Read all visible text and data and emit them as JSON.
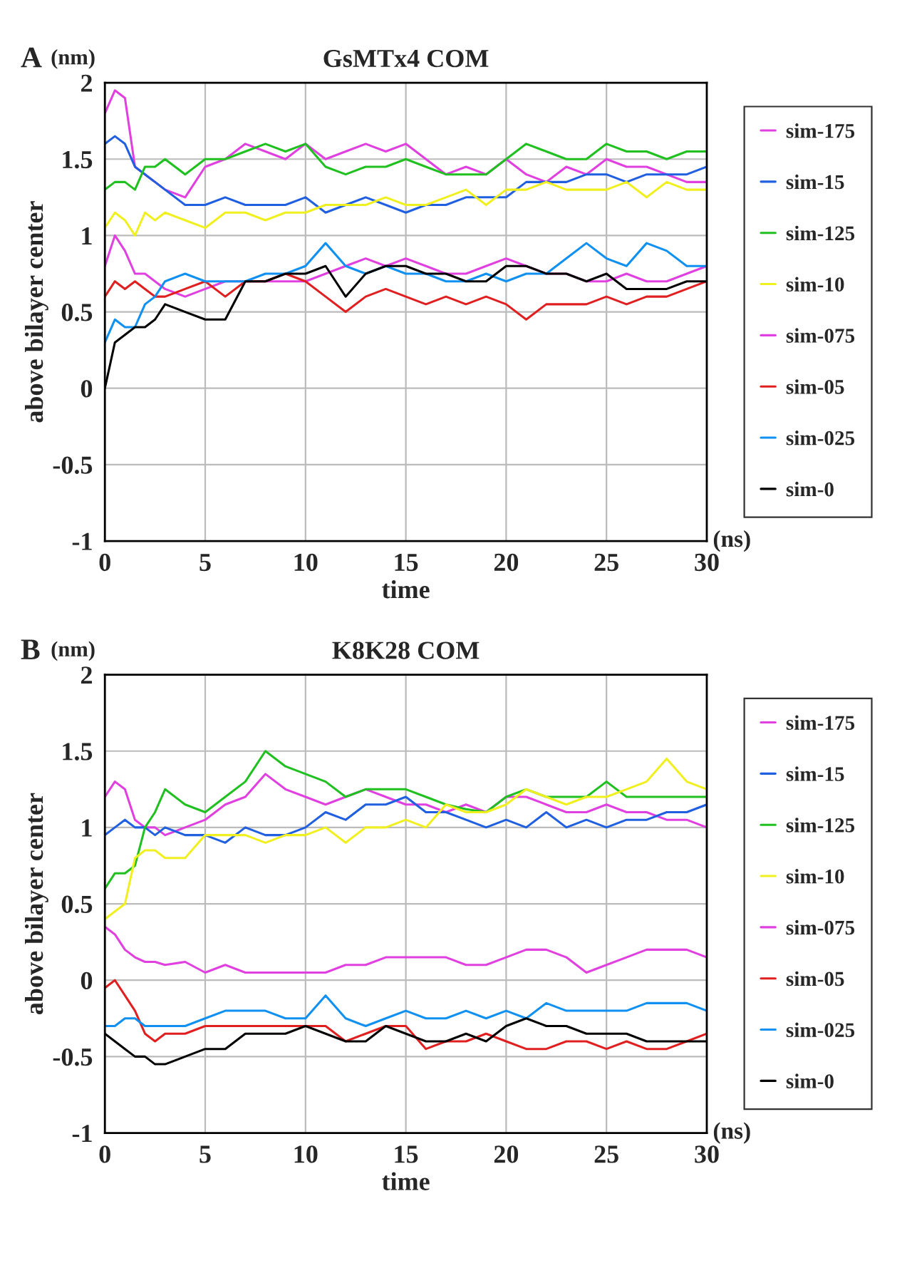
{
  "chart_data": [
    {
      "type": "line",
      "title": "GsMTx4 COM",
      "xlabel": "time",
      "ylabel": "above bilayer center",
      "annotations": [
        "A",
        "(nm)",
        "(ns)"
      ],
      "x": [
        0,
        0.5,
        1,
        1.5,
        2,
        2.5,
        3,
        4,
        5,
        6,
        7,
        8,
        9,
        10,
        11,
        12,
        13,
        14,
        15,
        16,
        17,
        18,
        19,
        20,
        21,
        22,
        23,
        24,
        25,
        26,
        27,
        28,
        29,
        30
      ],
      "xlim": [
        0,
        30
      ],
      "xticks": [
        0,
        5,
        10,
        15,
        20,
        25,
        30
      ],
      "ylim": [
        -1,
        2
      ],
      "yticks": [
        -1,
        -0.5,
        0,
        0.5,
        1,
        1.5,
        2
      ],
      "grid": true,
      "legend": "right",
      "line_style": "solid",
      "series": [
        {
          "name": "sim-175",
          "color": "#e040e0",
          "values": [
            1.8,
            1.95,
            1.9,
            1.45,
            1.4,
            1.35,
            1.3,
            1.25,
            1.45,
            1.5,
            1.6,
            1.55,
            1.5,
            1.6,
            1.5,
            1.55,
            1.6,
            1.55,
            1.6,
            1.5,
            1.4,
            1.45,
            1.4,
            1.5,
            1.4,
            1.35,
            1.45,
            1.4,
            1.5,
            1.45,
            1.45,
            1.4,
            1.35,
            1.35
          ]
        },
        {
          "name": "sim-15",
          "color": "#2060e0",
          "values": [
            1.6,
            1.65,
            1.6,
            1.45,
            1.4,
            1.35,
            1.3,
            1.2,
            1.2,
            1.25,
            1.2,
            1.2,
            1.2,
            1.25,
            1.15,
            1.2,
            1.25,
            1.2,
            1.15,
            1.2,
            1.2,
            1.25,
            1.25,
            1.25,
            1.35,
            1.35,
            1.35,
            1.4,
            1.4,
            1.35,
            1.4,
            1.4,
            1.4,
            1.45
          ]
        },
        {
          "name": "sim-125",
          "color": "#20c020",
          "values": [
            1.3,
            1.35,
            1.35,
            1.3,
            1.45,
            1.45,
            1.5,
            1.4,
            1.5,
            1.5,
            1.55,
            1.6,
            1.55,
            1.6,
            1.45,
            1.4,
            1.45,
            1.45,
            1.5,
            1.45,
            1.4,
            1.4,
            1.4,
            1.5,
            1.6,
            1.55,
            1.5,
            1.5,
            1.6,
            1.55,
            1.55,
            1.5,
            1.55,
            1.55
          ]
        },
        {
          "name": "sim-10",
          "color": "#f0f020",
          "values": [
            1.05,
            1.15,
            1.1,
            1.0,
            1.15,
            1.1,
            1.15,
            1.1,
            1.05,
            1.15,
            1.15,
            1.1,
            1.15,
            1.15,
            1.2,
            1.2,
            1.2,
            1.25,
            1.2,
            1.2,
            1.25,
            1.3,
            1.2,
            1.3,
            1.3,
            1.35,
            1.3,
            1.3,
            1.3,
            1.35,
            1.25,
            1.35,
            1.3,
            1.3
          ]
        },
        {
          "name": "sim-075",
          "color": "#e040e0",
          "values": [
            0.8,
            1.0,
            0.9,
            0.75,
            0.75,
            0.7,
            0.65,
            0.6,
            0.65,
            0.7,
            0.7,
            0.7,
            0.7,
            0.7,
            0.75,
            0.8,
            0.85,
            0.8,
            0.85,
            0.8,
            0.75,
            0.75,
            0.8,
            0.85,
            0.8,
            0.75,
            0.75,
            0.7,
            0.7,
            0.75,
            0.7,
            0.7,
            0.75,
            0.8
          ]
        },
        {
          "name": "sim-05",
          "color": "#e02020",
          "values": [
            0.6,
            0.7,
            0.65,
            0.7,
            0.65,
            0.6,
            0.6,
            0.65,
            0.7,
            0.6,
            0.7,
            0.7,
            0.75,
            0.7,
            0.6,
            0.5,
            0.6,
            0.65,
            0.6,
            0.55,
            0.6,
            0.55,
            0.6,
            0.55,
            0.45,
            0.55,
            0.55,
            0.55,
            0.6,
            0.55,
            0.6,
            0.6,
            0.65,
            0.7
          ]
        },
        {
          "name": "sim-025",
          "color": "#1090f0",
          "values": [
            0.3,
            0.45,
            0.4,
            0.4,
            0.55,
            0.6,
            0.7,
            0.75,
            0.7,
            0.7,
            0.7,
            0.75,
            0.75,
            0.8,
            0.95,
            0.8,
            0.75,
            0.8,
            0.75,
            0.75,
            0.7,
            0.7,
            0.75,
            0.7,
            0.75,
            0.75,
            0.85,
            0.95,
            0.85,
            0.8,
            0.95,
            0.9,
            0.8,
            0.8
          ]
        },
        {
          "name": "sim-0",
          "color": "#000000",
          "values": [
            0.0,
            0.3,
            0.35,
            0.4,
            0.4,
            0.45,
            0.55,
            0.5,
            0.45,
            0.45,
            0.7,
            0.7,
            0.75,
            0.75,
            0.8,
            0.6,
            0.75,
            0.8,
            0.8,
            0.75,
            0.75,
            0.7,
            0.7,
            0.8,
            0.8,
            0.75,
            0.75,
            0.7,
            0.75,
            0.65,
            0.65,
            0.65,
            0.7,
            0.7
          ]
        }
      ]
    },
    {
      "type": "line",
      "title": "K8K28 COM",
      "xlabel": "time",
      "ylabel": "above bilayer center",
      "annotations": [
        "B",
        "(nm)",
        "(ns)"
      ],
      "x": [
        0,
        0.5,
        1,
        1.5,
        2,
        2.5,
        3,
        4,
        5,
        6,
        7,
        8,
        9,
        10,
        11,
        12,
        13,
        14,
        15,
        16,
        17,
        18,
        19,
        20,
        21,
        22,
        23,
        24,
        25,
        26,
        27,
        28,
        29,
        30
      ],
      "xlim": [
        0,
        30
      ],
      "xticks": [
        0,
        5,
        10,
        15,
        20,
        25,
        30
      ],
      "ylim": [
        -1,
        2
      ],
      "yticks": [
        -1,
        -0.5,
        0,
        0.5,
        1,
        1.5,
        2
      ],
      "grid": true,
      "legend": "right",
      "line_style": "solid",
      "series": [
        {
          "name": "sim-175",
          "color": "#e040e0",
          "values": [
            1.2,
            1.3,
            1.25,
            1.05,
            1.0,
            1.0,
            0.95,
            1.0,
            1.05,
            1.15,
            1.2,
            1.35,
            1.25,
            1.2,
            1.15,
            1.2,
            1.25,
            1.2,
            1.15,
            1.15,
            1.1,
            1.15,
            1.1,
            1.2,
            1.2,
            1.15,
            1.1,
            1.1,
            1.15,
            1.1,
            1.1,
            1.05,
            1.05,
            1.0
          ]
        },
        {
          "name": "sim-15",
          "color": "#2060e0",
          "values": [
            0.95,
            1.0,
            1.05,
            1.0,
            1.0,
            0.95,
            1.0,
            0.95,
            0.95,
            0.9,
            1.0,
            0.95,
            0.95,
            1.0,
            1.1,
            1.05,
            1.15,
            1.15,
            1.2,
            1.1,
            1.1,
            1.05,
            1.0,
            1.05,
            1.0,
            1.1,
            1.0,
            1.05,
            1.0,
            1.05,
            1.05,
            1.1,
            1.1,
            1.15
          ]
        },
        {
          "name": "sim-125",
          "color": "#20c020",
          "values": [
            0.6,
            0.7,
            0.7,
            0.75,
            1.0,
            1.1,
            1.25,
            1.15,
            1.1,
            1.2,
            1.3,
            1.5,
            1.4,
            1.35,
            1.3,
            1.2,
            1.25,
            1.25,
            1.25,
            1.2,
            1.15,
            1.12,
            1.1,
            1.2,
            1.25,
            1.2,
            1.2,
            1.2,
            1.3,
            1.2,
            1.2,
            1.2,
            1.2,
            1.2
          ]
        },
        {
          "name": "sim-10",
          "color": "#f0f020",
          "values": [
            0.4,
            0.45,
            0.5,
            0.8,
            0.85,
            0.85,
            0.8,
            0.8,
            0.95,
            0.95,
            0.95,
            0.9,
            0.95,
            0.95,
            1.0,
            0.9,
            1.0,
            1.0,
            1.05,
            1.0,
            1.15,
            1.1,
            1.1,
            1.15,
            1.25,
            1.2,
            1.15,
            1.2,
            1.2,
            1.25,
            1.3,
            1.45,
            1.3,
            1.25
          ]
        },
        {
          "name": "sim-075",
          "color": "#e040e0",
          "values": [
            0.35,
            0.3,
            0.2,
            0.15,
            0.12,
            0.12,
            0.1,
            0.12,
            0.05,
            0.1,
            0.05,
            0.05,
            0.05,
            0.05,
            0.05,
            0.1,
            0.1,
            0.15,
            0.15,
            0.15,
            0.15,
            0.1,
            0.1,
            0.15,
            0.2,
            0.2,
            0.15,
            0.05,
            0.1,
            0.15,
            0.2,
            0.2,
            0.2,
            0.15
          ]
        },
        {
          "name": "sim-05",
          "color": "#e02020",
          "values": [
            -0.05,
            0.0,
            -0.1,
            -0.2,
            -0.35,
            -0.4,
            -0.35,
            -0.35,
            -0.3,
            -0.3,
            -0.3,
            -0.3,
            -0.3,
            -0.3,
            -0.3,
            -0.4,
            -0.35,
            -0.3,
            -0.3,
            -0.45,
            -0.4,
            -0.4,
            -0.35,
            -0.4,
            -0.45,
            -0.45,
            -0.4,
            -0.4,
            -0.45,
            -0.4,
            -0.45,
            -0.45,
            -0.4,
            -0.35
          ]
        },
        {
          "name": "sim-025",
          "color": "#1090f0",
          "values": [
            -0.3,
            -0.3,
            -0.25,
            -0.25,
            -0.3,
            -0.3,
            -0.3,
            -0.3,
            -0.25,
            -0.2,
            -0.2,
            -0.2,
            -0.25,
            -0.25,
            -0.1,
            -0.25,
            -0.3,
            -0.25,
            -0.2,
            -0.25,
            -0.25,
            -0.2,
            -0.25,
            -0.2,
            -0.25,
            -0.15,
            -0.2,
            -0.2,
            -0.2,
            -0.2,
            -0.15,
            -0.15,
            -0.15,
            -0.2
          ]
        },
        {
          "name": "sim-0",
          "color": "#000000",
          "values": [
            -0.35,
            -0.4,
            -0.45,
            -0.5,
            -0.5,
            -0.55,
            -0.55,
            -0.5,
            -0.45,
            -0.45,
            -0.35,
            -0.35,
            -0.35,
            -0.3,
            -0.35,
            -0.4,
            -0.4,
            -0.3,
            -0.35,
            -0.4,
            -0.4,
            -0.35,
            -0.4,
            -0.3,
            -0.25,
            -0.3,
            -0.3,
            -0.35,
            -0.35,
            -0.35,
            -0.4,
            -0.4,
            -0.4,
            -0.4
          ]
        }
      ]
    }
  ]
}
